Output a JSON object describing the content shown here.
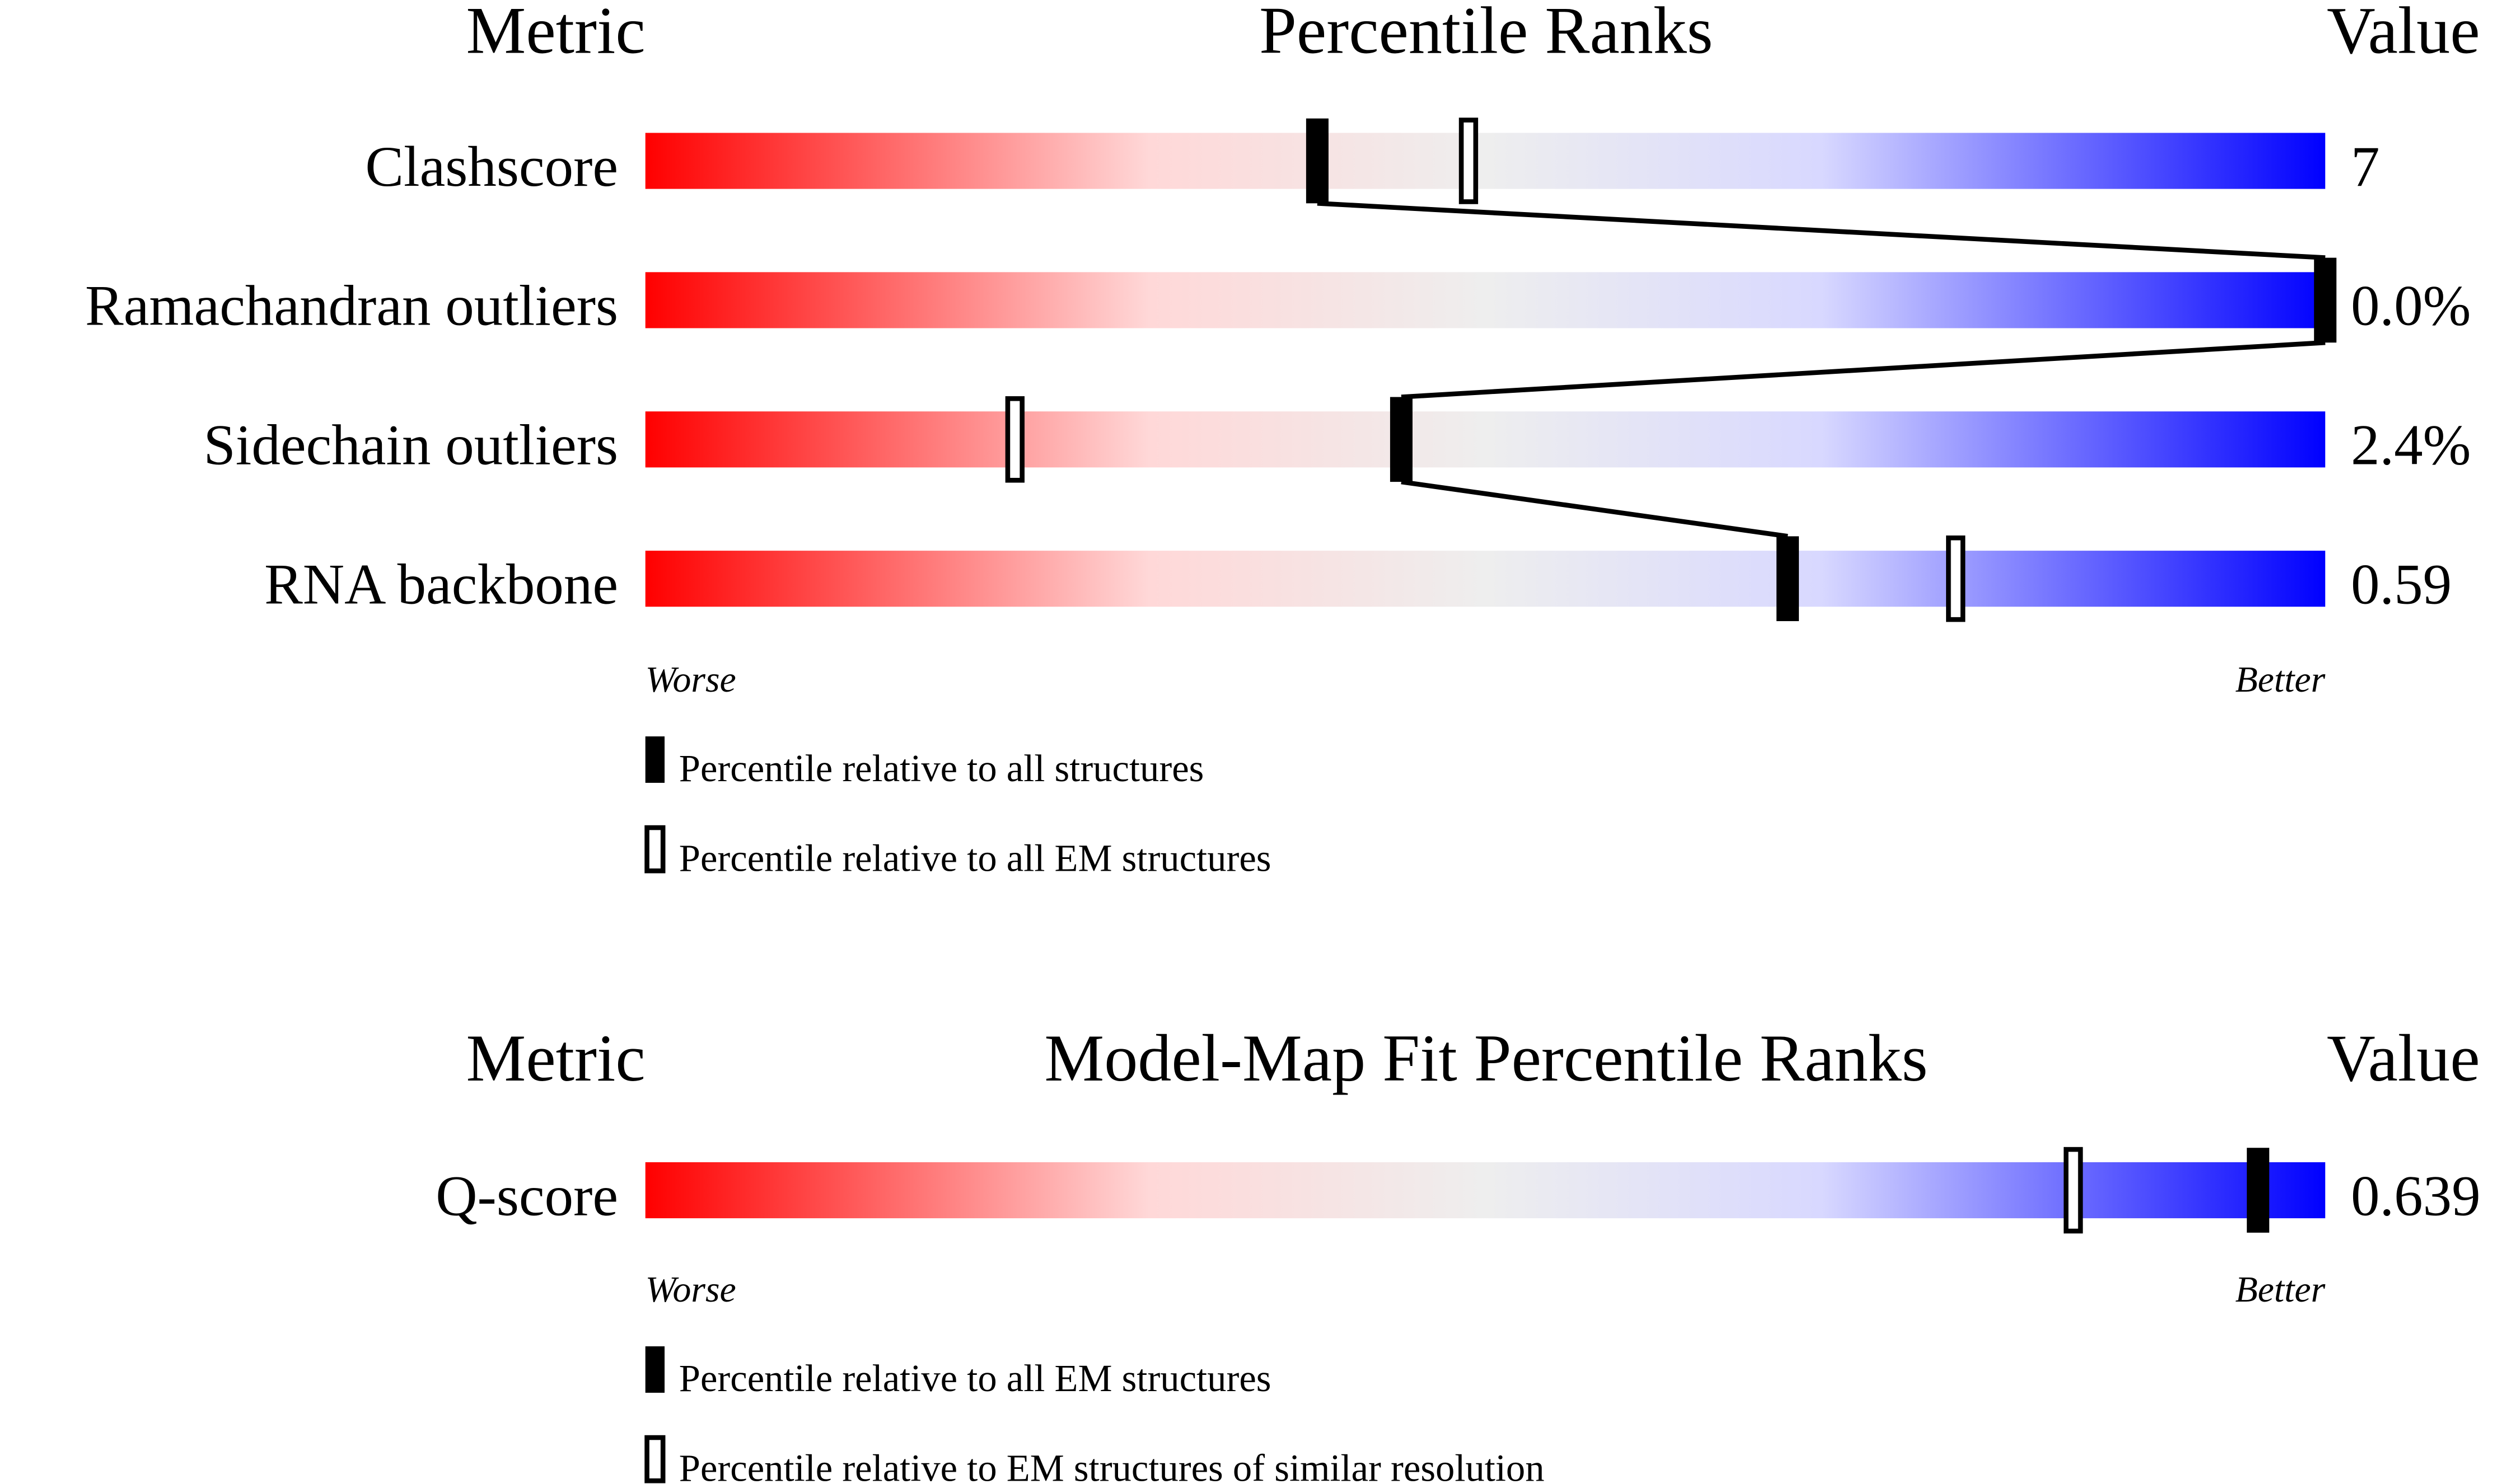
{
  "chart_data": [
    {
      "type": "percentile-slider",
      "headers": {
        "metric": "Metric",
        "title": "Percentile Ranks",
        "value": "Value"
      },
      "xlim": [
        0,
        100
      ],
      "worse_label": "Worse",
      "better_label": "Better",
      "gradient_colors": [
        "#ff0000",
        "#ffd8d8",
        "#eeeeee",
        "#d8d8ff",
        "#0000ff"
      ],
      "rows": [
        {
          "metric": "Clashscore",
          "value": "7",
          "percentile_all": 40,
          "percentile_em": 49
        },
        {
          "metric": "Ramachandran outliers",
          "value": "0.0%",
          "percentile_all": 100,
          "percentile_em": null
        },
        {
          "metric": "Sidechain outliers",
          "value": "2.4%",
          "percentile_all": 45,
          "percentile_em": 22
        },
        {
          "metric": "RNA backbone",
          "value": "0.59",
          "percentile_all": 68,
          "percentile_em": 78
        }
      ],
      "legend": [
        {
          "marker": "filled",
          "label": "Percentile relative to all structures"
        },
        {
          "marker": "open",
          "label": "Percentile relative to all EM structures"
        }
      ]
    },
    {
      "type": "percentile-slider",
      "headers": {
        "metric": "Metric",
        "title": "Model-Map Fit Percentile Ranks",
        "value": "Value"
      },
      "xlim": [
        0,
        100
      ],
      "worse_label": "Worse",
      "better_label": "Better",
      "gradient_colors": [
        "#ff0000",
        "#ffd8d8",
        "#eeeeee",
        "#d8d8ff",
        "#0000ff"
      ],
      "rows": [
        {
          "metric": "Q-score",
          "value": "0.639",
          "percentile_all": 96,
          "percentile_em": 85
        }
      ],
      "legend": [
        {
          "marker": "filled",
          "label": "Percentile relative to all EM structures"
        },
        {
          "marker": "open",
          "label": "Percentile relative to EM structures of similar resolution"
        }
      ]
    }
  ]
}
